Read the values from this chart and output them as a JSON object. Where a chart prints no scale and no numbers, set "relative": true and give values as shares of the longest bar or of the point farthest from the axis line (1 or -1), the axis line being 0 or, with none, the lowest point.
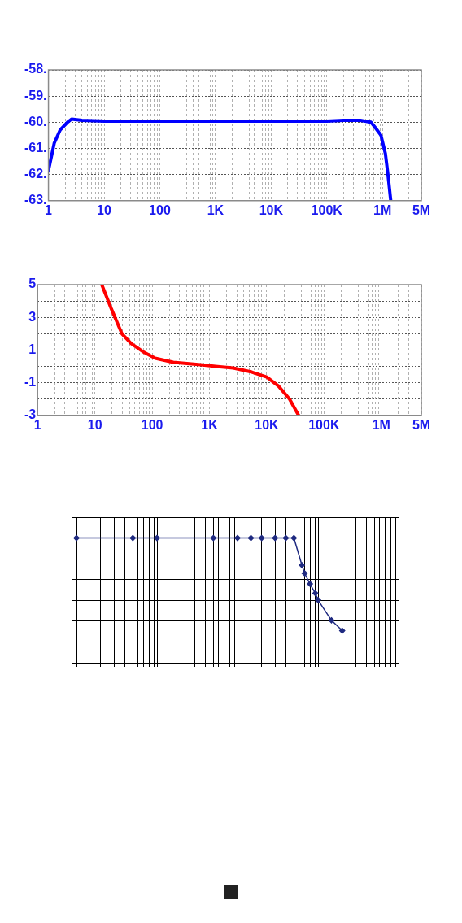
{
  "chart_data": [
    {
      "type": "line",
      "log": "x",
      "grid": true,
      "color": "#0000ff",
      "x": [
        1,
        1.27,
        1.62,
        2.2,
        2.6,
        4,
        10,
        100,
        1000,
        10000,
        100000,
        200000,
        400000,
        620000,
        740000,
        940000,
        1130000,
        1270000,
        1410000
      ],
      "values": [
        -61.84,
        -60.8,
        -60.3,
        -60.0,
        -59.88,
        -59.93,
        -59.96,
        -59.96,
        -59.96,
        -59.96,
        -59.96,
        -59.93,
        -59.93,
        -60.0,
        -60.2,
        -60.5,
        -61.2,
        -62.1,
        -63
      ],
      "xlim": [
        1,
        5000000
      ],
      "xticks": [
        1,
        {
          "value": 2,
          "label": null
        },
        {
          "value": 3,
          "label": null
        },
        {
          "value": 4,
          "label": null
        },
        {
          "value": 5,
          "label": null
        },
        {
          "value": 6,
          "label": null
        },
        {
          "value": 7,
          "label": null
        },
        {
          "value": 8,
          "label": null
        },
        {
          "value": 9,
          "label": null
        },
        10,
        {
          "value": 20,
          "label": null
        },
        {
          "value": 30,
          "label": null
        },
        {
          "value": 40,
          "label": null
        },
        {
          "value": 50,
          "label": null
        },
        {
          "value": 60,
          "label": null
        },
        {
          "value": 70,
          "label": null
        },
        {
          "value": 80,
          "label": null
        },
        {
          "value": 90,
          "label": null
        },
        100,
        {
          "value": 200,
          "label": null
        },
        {
          "value": 300,
          "label": null
        },
        {
          "value": 400,
          "label": null
        },
        {
          "value": 500,
          "label": null
        },
        {
          "value": 600,
          "label": null
        },
        {
          "value": 700,
          "label": null
        },
        {
          "value": 800,
          "label": null
        },
        {
          "value": 900,
          "label": null
        },
        {
          "value": 1000,
          "label": "1K"
        },
        {
          "value": 2000,
          "label": null
        },
        {
          "value": 3000,
          "label": null
        },
        {
          "value": 4000,
          "label": null
        },
        {
          "value": 5000,
          "label": null
        },
        {
          "value": 6000,
          "label": null
        },
        {
          "value": 7000,
          "label": null
        },
        {
          "value": 8000,
          "label": null
        },
        {
          "value": 9000,
          "label": null
        },
        {
          "value": 10000,
          "label": "10K"
        },
        {
          "value": 20000,
          "label": null
        },
        {
          "value": 30000,
          "label": null
        },
        {
          "value": 40000,
          "label": null
        },
        {
          "value": 50000,
          "label": null
        },
        {
          "value": 60000,
          "label": null
        },
        {
          "value": 70000,
          "label": null
        },
        {
          "value": 80000,
          "label": null
        },
        {
          "value": 90000,
          "label": null
        },
        {
          "value": 100000,
          "label": "100K"
        },
        {
          "value": 200000,
          "label": null
        },
        {
          "value": 300000,
          "label": null
        },
        {
          "value": 400000,
          "label": null
        },
        {
          "value": 500000,
          "label": null
        },
        {
          "value": 600000,
          "label": null
        },
        {
          "value": 700000,
          "label": null
        },
        {
          "value": 800000,
          "label": null
        },
        {
          "value": 900000,
          "label": null
        },
        {
          "value": 1000000,
          "label": "1M"
        },
        {
          "value": 2000000,
          "label": null
        },
        {
          "value": 3000000,
          "label": null
        },
        {
          "value": 4000000,
          "label": null
        },
        {
          "value": 5000000,
          "label": "5M"
        }
      ],
      "ylim": [
        -63,
        -58
      ],
      "yticks": [
        {
          "value": -58,
          "label": "-58."
        },
        {
          "value": -59,
          "label": "-59."
        },
        {
          "value": -60,
          "label": "-60."
        },
        {
          "value": -61,
          "label": "-61."
        },
        {
          "value": -62,
          "label": "-62."
        },
        {
          "value": -63,
          "label": "-63."
        }
      ]
    },
    {
      "type": "line",
      "log": "x",
      "grid": true,
      "color": "#ff0000",
      "x": [
        13.2,
        19.5,
        29.6,
        43,
        69,
        113,
        234,
        700,
        1270,
        2600,
        5500,
        10000,
        16000,
        25000,
        36000
      ],
      "values": [
        5,
        3.5,
        2.0,
        1.4,
        0.9,
        0.5,
        0.25,
        0.1,
        0,
        -0.1,
        -0.35,
        -0.65,
        -1.2,
        -2.0,
        -3
      ],
      "xlim": [
        1,
        5000000
      ],
      "xticks": [
        1,
        {
          "value": 2,
          "label": null
        },
        {
          "value": 3,
          "label": null
        },
        {
          "value": 4,
          "label": null
        },
        {
          "value": 5,
          "label": null
        },
        {
          "value": 6,
          "label": null
        },
        {
          "value": 7,
          "label": null
        },
        {
          "value": 8,
          "label": null
        },
        {
          "value": 9,
          "label": null
        },
        10,
        {
          "value": 20,
          "label": null
        },
        {
          "value": 30,
          "label": null
        },
        {
          "value": 40,
          "label": null
        },
        {
          "value": 50,
          "label": null
        },
        {
          "value": 60,
          "label": null
        },
        {
          "value": 70,
          "label": null
        },
        {
          "value": 80,
          "label": null
        },
        {
          "value": 90,
          "label": null
        },
        100,
        {
          "value": 200,
          "label": null
        },
        {
          "value": 300,
          "label": null
        },
        {
          "value": 400,
          "label": null
        },
        {
          "value": 500,
          "label": null
        },
        {
          "value": 600,
          "label": null
        },
        {
          "value": 700,
          "label": null
        },
        {
          "value": 800,
          "label": null
        },
        {
          "value": 900,
          "label": null
        },
        {
          "value": 1000,
          "label": "1K"
        },
        {
          "value": 2000,
          "label": null
        },
        {
          "value": 3000,
          "label": null
        },
        {
          "value": 4000,
          "label": null
        },
        {
          "value": 5000,
          "label": null
        },
        {
          "value": 6000,
          "label": null
        },
        {
          "value": 7000,
          "label": null
        },
        {
          "value": 8000,
          "label": null
        },
        {
          "value": 9000,
          "label": null
        },
        {
          "value": 10000,
          "label": "10K"
        },
        {
          "value": 20000,
          "label": null
        },
        {
          "value": 30000,
          "label": null
        },
        {
          "value": 40000,
          "label": null
        },
        {
          "value": 50000,
          "label": null
        },
        {
          "value": 60000,
          "label": null
        },
        {
          "value": 70000,
          "label": null
        },
        {
          "value": 80000,
          "label": null
        },
        {
          "value": 90000,
          "label": null
        },
        {
          "value": 100000,
          "label": "100K"
        },
        {
          "value": 200000,
          "label": null
        },
        {
          "value": 300000,
          "label": null
        },
        {
          "value": 400000,
          "label": null
        },
        {
          "value": 500000,
          "label": null
        },
        {
          "value": 600000,
          "label": null
        },
        {
          "value": 700000,
          "label": null
        },
        {
          "value": 800000,
          "label": null
        },
        {
          "value": 900000,
          "label": null
        },
        {
          "value": 1000000,
          "label": "1M"
        },
        {
          "value": 2000000,
          "label": null
        },
        {
          "value": 3000000,
          "label": null
        },
        {
          "value": 4000000,
          "label": null
        },
        {
          "value": 5000000,
          "label": "5M"
        }
      ],
      "ylim": [
        -3,
        5
      ],
      "yticks": [
        5,
        {
          "value": 4,
          "label": null
        },
        3,
        {
          "value": 2,
          "label": null
        },
        1,
        {
          "value": 0,
          "label": null
        },
        -1,
        {
          "value": -2,
          "label": null
        },
        -3
      ]
    },
    {
      "type": "line",
      "relative": true,
      "grid": true,
      "tick_labels": false,
      "marker": "diamond",
      "color": "#1f2a80",
      "categories": [
        null,
        null,
        null,
        null,
        null,
        null,
        null,
        null,
        null,
        null,
        null,
        null,
        null,
        null,
        null,
        null,
        null,
        null,
        null,
        null,
        null,
        null,
        null,
        null,
        null,
        null,
        null,
        null,
        null,
        null,
        null,
        null,
        null,
        null,
        null,
        null,
        null,
        null,
        null,
        null,
        null,
        null,
        null,
        null,
        null,
        null,
        null,
        null,
        null,
        null,
        null,
        null,
        null,
        null,
        null,
        null,
        null,
        null,
        null,
        null,
        null,
        null,
        null,
        null,
        null,
        null,
        null,
        null,
        null,
        null,
        null,
        null,
        null,
        null,
        null,
        null,
        null,
        null,
        null,
        null,
        null,
        null,
        null,
        null,
        null,
        null,
        null,
        null,
        null,
        null,
        null,
        null,
        null,
        null,
        null,
        null,
        null,
        null,
        null,
        null,
        null,
        null,
        null,
        null,
        null,
        null,
        null,
        null,
        null,
        null,
        null,
        null,
        null,
        null,
        null,
        null,
        null,
        null,
        null,
        null,
        null
      ],
      "values": [
        1,
        null,
        null,
        null,
        null,
        null,
        null,
        null,
        null,
        null,
        null,
        null,
        null,
        null,
        null,
        null,
        null,
        null,
        null,
        null,
        null,
        1,
        null,
        null,
        null,
        null,
        null,
        null,
        null,
        null,
        1,
        null,
        null,
        null,
        null,
        null,
        null,
        null,
        null,
        null,
        null,
        null,
        null,
        null,
        null,
        null,
        null,
        null,
        null,
        null,
        null,
        1,
        null,
        null,
        null,
        null,
        null,
        null,
        null,
        null,
        1,
        null,
        null,
        null,
        null,
        1,
        null,
        null,
        null,
        1,
        null,
        null,
        null,
        null,
        1,
        null,
        null,
        null,
        1,
        null,
        null,
        1,
        null,
        null,
        0.782,
        0.717,
        null,
        0.632,
        null,
        0.557,
        0.503,
        null,
        null,
        null,
        null,
        0.34,
        null,
        null,
        null,
        0.257,
        null,
        null,
        null,
        null,
        null,
        null,
        null,
        null,
        null,
        null,
        null,
        null,
        null,
        null,
        null,
        null,
        null,
        null,
        null,
        null,
        null
      ]
    }
  ]
}
